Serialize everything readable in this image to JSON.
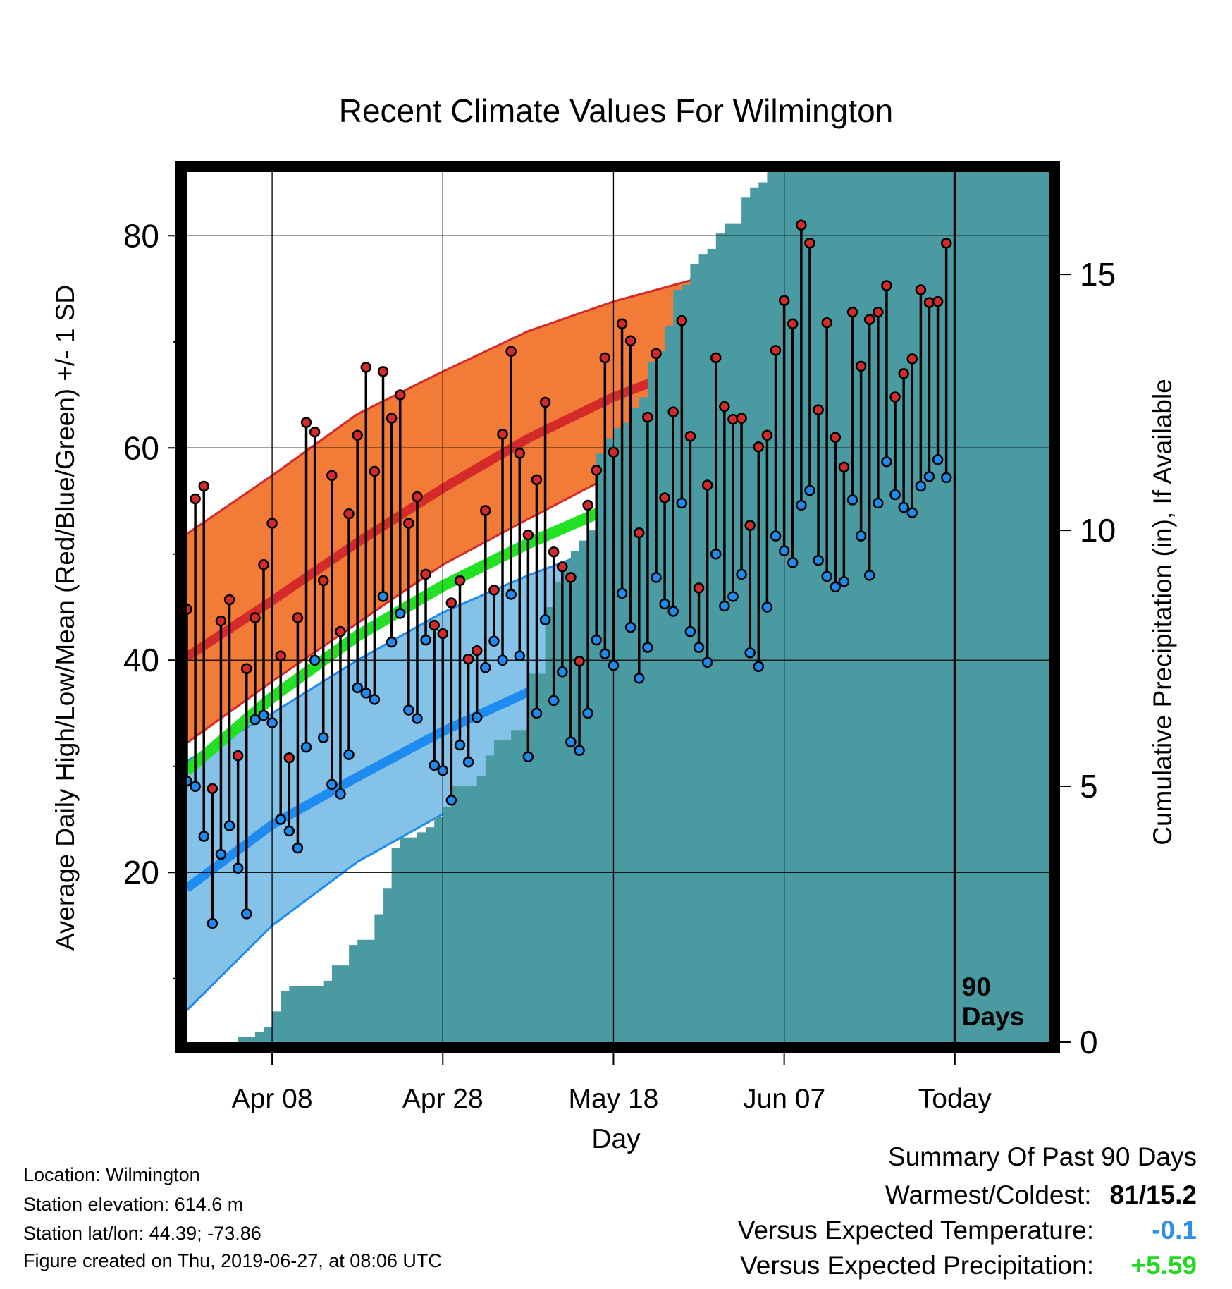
{
  "chart_data": {
    "type": "line",
    "title": "Recent Climate Values For Wilmington",
    "xlabel": "Day",
    "ylabel": "Average Daily High/Low/Mean (Red/Blue/Green) +/- 1 SD",
    "y2label": "Cumulative Precipitation (in), If Available",
    "x_start": "Mar 29",
    "x_end": "Jul 08",
    "today": "Jun 27",
    "x_ticks": [
      {
        "date": "Apr 08",
        "label": "Apr 08"
      },
      {
        "date": "Apr 28",
        "label": "Apr 28"
      },
      {
        "date": "May 18",
        "label": "May 18"
      },
      {
        "date": "Jun 07",
        "label": "Jun 07"
      },
      {
        "date": "Jun 27",
        "label": "Today"
      }
    ],
    "ylim": [
      4,
      86
    ],
    "y_ticks": [
      20,
      40,
      60,
      80
    ],
    "y2lim": [
      0,
      17
    ],
    "y2_ticks": [
      0,
      5,
      10,
      15
    ],
    "grid": true,
    "period_label": "90\nDays",
    "climatology": {
      "dates": [
        "Mar 29",
        "Apr 08",
        "Apr 18",
        "Apr 28",
        "May 08",
        "May 18",
        "May 28",
        "Jun 07",
        "Jun 17",
        "Jun 27",
        "Jul 08"
      ],
      "normal_high": [
        40.3,
        45.6,
        51.1,
        56.2,
        60.9,
        64.8,
        67.9,
        70.3,
        72.3,
        73.6,
        74.5
      ],
      "normal_high_plus_sd": [
        51.9,
        57.4,
        63.2,
        67.2,
        71.0,
        73.8,
        76.0,
        78.0,
        79.7,
        80.6,
        81.0
      ],
      "normal_high_minus_sd": [
        32.2,
        38.0,
        43.5,
        49.0,
        53.3,
        57.5,
        60.5,
        63.0,
        65.0,
        66.4,
        68.0
      ],
      "normal_mean": [
        29.6,
        36.5,
        42.3,
        47.0,
        51.0,
        54.5,
        57.5,
        59.5,
        61.2,
        62.2,
        63.0
      ],
      "normal_low": [
        18.5,
        24.5,
        29.0,
        33.3,
        37.0,
        40.5,
        43.3,
        46.3,
        48.5,
        50.1,
        51.1
      ],
      "normal_low_plus_sd": [
        30.5,
        35.0,
        40.0,
        44.5,
        48.0,
        51.0,
        53.8,
        55.5,
        56.8,
        57.6,
        58.3
      ],
      "normal_low_minus_sd": [
        7.0,
        15.0,
        21.0,
        25.5,
        29.0,
        32.6,
        36.2,
        39.0,
        41.8,
        43.8,
        45.0
      ]
    },
    "series": [
      {
        "name": "Daily High",
        "values": [
          44.8,
          55.2,
          56.4,
          27.9,
          43.7,
          45.7,
          31.0,
          39.2,
          44.0,
          49.0,
          52.9,
          40.4,
          30.8,
          44.0,
          62.4,
          61.5,
          47.5,
          57.4,
          42.7,
          53.8,
          61.2,
          67.6,
          57.8,
          67.2,
          62.8,
          65.0,
          52.9,
          55.4,
          48.1,
          43.3,
          42.5,
          45.4,
          47.5,
          40.1,
          40.9,
          54.1,
          46.6,
          61.3,
          69.1,
          59.5,
          51.8,
          57.0,
          64.3,
          50.2,
          48.8,
          47.8,
          39.9,
          54.6,
          57.9,
          68.5,
          59.6,
          71.7,
          70.1,
          52.0,
          62.9,
          68.9,
          55.3,
          63.4,
          72.0,
          61.1,
          46.8,
          56.5,
          68.5,
          63.9,
          62.7,
          62.8,
          52.7,
          60.1,
          61.2,
          69.2,
          73.9,
          71.7,
          81.0,
          79.3,
          63.6,
          71.8,
          61.0,
          58.2,
          72.8,
          67.7,
          72.1,
          72.8,
          75.3,
          64.8,
          67.0,
          68.4,
          74.9,
          73.7,
          73.8,
          79.3
        ]
      },
      {
        "name": "Daily Low",
        "values": [
          28.6,
          28.1,
          23.4,
          15.2,
          21.7,
          24.4,
          20.4,
          16.1,
          34.4,
          34.8,
          34.1,
          25.0,
          23.9,
          22.3,
          31.8,
          40.0,
          32.7,
          28.3,
          27.4,
          31.1,
          37.4,
          36.9,
          36.3,
          46.0,
          41.7,
          44.4,
          35.3,
          34.5,
          41.9,
          30.1,
          29.6,
          26.8,
          32.0,
          30.4,
          34.6,
          39.3,
          41.8,
          40.0,
          46.2,
          40.4,
          30.9,
          35.0,
          43.8,
          36.2,
          38.9,
          32.3,
          31.5,
          35.0,
          41.9,
          40.6,
          39.5,
          46.3,
          43.1,
          38.3,
          41.2,
          47.8,
          45.3,
          44.6,
          54.8,
          42.7,
          41.2,
          39.8,
          50.0,
          45.1,
          46.0,
          48.1,
          40.7,
          39.4,
          45.0,
          51.7,
          50.3,
          49.2,
          54.6,
          56.0,
          49.4,
          47.9,
          46.9,
          47.4,
          55.1,
          51.7,
          48.0,
          54.8,
          58.7,
          55.6,
          54.4,
          53.9,
          56.4,
          57.3,
          58.9,
          57.2
        ]
      }
    ],
    "cumulative_precipitation": {
      "dates": [
        "Mar 29",
        "Apr 04",
        "Apr 06",
        "Apr 07",
        "Apr 08",
        "Apr 09",
        "Apr 10",
        "Apr 11",
        "Apr 14",
        "Apr 15",
        "Apr 17",
        "Apr 18",
        "Apr 20",
        "Apr 21",
        "Apr 22",
        "Apr 23",
        "Apr 25",
        "Apr 26",
        "Apr 27",
        "Apr 28",
        "Apr 29",
        "May 02",
        "May 03",
        "May 04",
        "May 06",
        "May 08",
        "May 10",
        "May 11",
        "May 12",
        "May 13",
        "May 14",
        "May 15",
        "May 16",
        "May 17",
        "May 18",
        "May 19",
        "May 20",
        "May 21",
        "May 22",
        "May 23",
        "May 24",
        "May 25",
        "May 26",
        "May 27",
        "May 28",
        "May 29",
        "May 30",
        "May 31",
        "Jun 01",
        "Jun 02",
        "Jun 03",
        "Jun 04",
        "Jun 05",
        "Jun 06",
        "Jun 07",
        "Jun 08",
        "Jun 09",
        "Jun 11",
        "Jun 12",
        "Jun 14",
        "Jun 15",
        "Jun 18",
        "Jun 19",
        "Jun 20",
        "Jun 23",
        "Jun 24",
        "Jul 08"
      ],
      "values": [
        0,
        0.1,
        0.2,
        0.3,
        0.6,
        1.0,
        1.1,
        1.1,
        1.2,
        1.5,
        1.9,
        2.0,
        2.5,
        3.0,
        3.8,
        4.0,
        4.1,
        4.2,
        4.4,
        4.6,
        5.0,
        5.2,
        5.6,
        5.9,
        6.1,
        7.2,
        8.5,
        9.0,
        9.4,
        9.6,
        9.8,
        10.0,
        11.5,
        11.8,
        12.0,
        12.1,
        12.4,
        12.6,
        13.3,
        13.5,
        14.0,
        14.7,
        14.8,
        15.2,
        15.4,
        15.5,
        15.8,
        16.0,
        16.0,
        16.5,
        16.7,
        16.8,
        17.0,
        17.1,
        17.3,
        17.3,
        17.6,
        17.6,
        17.8,
        17.8,
        17.8,
        18.2,
        18.3,
        18.4,
        18.4,
        18.5,
        18.5
      ]
    }
  },
  "info": {
    "location": "Location: Wilmington",
    "elevation": "Station elevation: 614.6 m",
    "latlon": "Station lat/lon: 44.39; -73.86",
    "created": "Figure created on Thu, 2019-06-27, at 08:06 UTC"
  },
  "summary": {
    "title": "Summary Of Past 90 Days",
    "warmest_coldest_label": "Warmest/Coldest:",
    "warmest_coldest_value": "81/15.2",
    "temp_label": "Versus Expected Temperature:",
    "temp_value": "-0.1",
    "temp_color": "#2c8fe8",
    "precip_label": "Versus Expected Precipitation:",
    "precip_value": "+5.59",
    "precip_color": "#22d822"
  },
  "colors": {
    "high_band": "#f27b37",
    "high_line": "#d42a2a",
    "mean_line": "#22e022",
    "low_band": "#84c2e8",
    "low_line": "#1e8bf0",
    "precip_fill": "#4a9aa2",
    "high_dot": "#d42a2a",
    "low_dot": "#1e8bf0"
  }
}
